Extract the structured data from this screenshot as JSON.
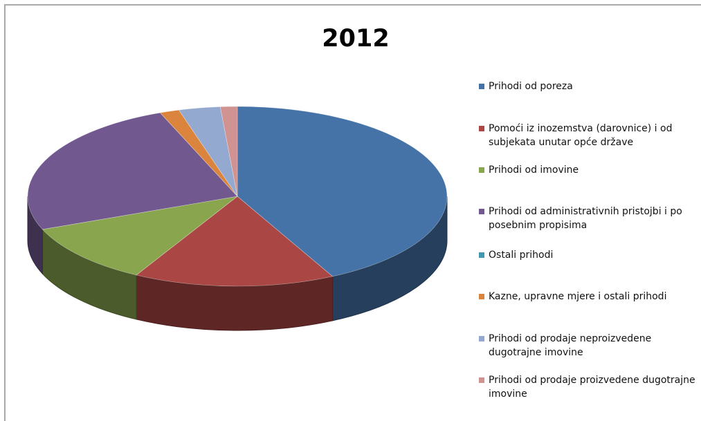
{
  "chart_data": {
    "type": "pie",
    "title": "2012",
    "style": "3d-exploded-free",
    "legend_position": "right",
    "categories": [
      "Prihodi od poreza",
      "Pomoći iz inozemstva (darovnice) i od subjekata unutar opće države",
      "Prihodi od imovine",
      "Prihodi od administrativnih pristojbi i po posebnim propisima",
      "Ostali prihodi",
      "Kazne, upravne mjere i ostali prihodi",
      "Prihodi od prodaje neproizvedene dugotrajne imovine",
      "Prihodi od prodaje proizvedene dugotrajne imovine"
    ],
    "values": [
      42.5,
      15.5,
      11,
      25,
      0,
      1.5,
      3.2,
      1.3
    ],
    "colors": [
      "#4572A7",
      "#AA4643",
      "#89A54E",
      "#71588F",
      "#4198AF",
      "#DB843D",
      "#93A9CF",
      "#D19392"
    ]
  }
}
